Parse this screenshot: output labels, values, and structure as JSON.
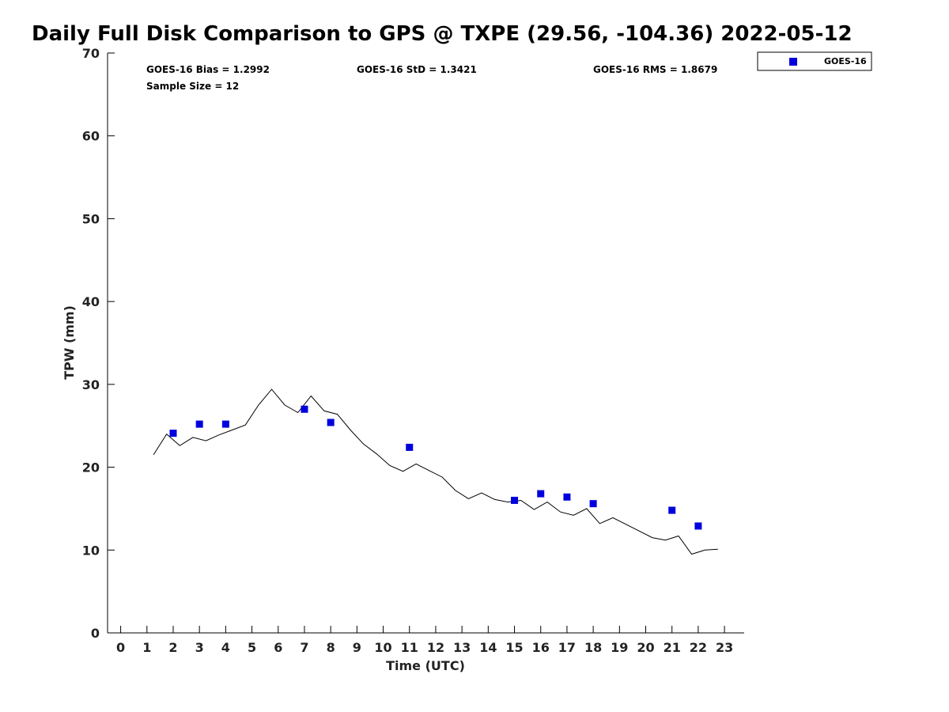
{
  "chart_data": {
    "type": "line",
    "title": "Daily Full Disk Comparison to GPS @ TXPE (29.56, -104.36) 2022-05-12",
    "xlabel": "Time (UTC)",
    "ylabel": "TPW (mm)",
    "xlim": [
      -0.5,
      23.75
    ],
    "ylim": [
      0,
      70
    ],
    "x_ticks": [
      0,
      1,
      2,
      3,
      4,
      5,
      6,
      7,
      8,
      9,
      10,
      11,
      12,
      13,
      14,
      15,
      16,
      17,
      18,
      19,
      20,
      21,
      22,
      23
    ],
    "y_ticks": [
      0,
      10,
      20,
      30,
      40,
      50,
      60,
      70
    ],
    "grid": false,
    "legend_position": "top-right, outside plot",
    "stats": {
      "bias": "GOES-16 Bias = 1.2992",
      "std": "GOES-16 StD = 1.3421",
      "rms": "GOES-16 RMS = 1.8679",
      "sample": "Sample Size = 12"
    },
    "series": [
      {
        "kind": "line",
        "color": "#000000",
        "x": [
          1.25,
          1.75,
          2.25,
          2.75,
          3.25,
          3.75,
          4.25,
          4.75,
          5.25,
          5.75,
          6.25,
          6.75,
          7.25,
          7.75,
          8.25,
          8.75,
          9.25,
          9.75,
          10.25,
          10.75,
          11.25,
          11.75,
          12.25,
          12.75,
          13.25,
          13.75,
          14.25,
          14.75,
          15.25,
          15.75,
          16.25,
          16.75,
          17.25,
          17.75,
          18.25,
          18.75,
          19.25,
          19.75,
          20.25,
          20.75,
          21.25,
          21.75,
          22.25,
          22.75
        ],
        "values": [
          21.5,
          24.0,
          22.6,
          23.6,
          23.2,
          23.9,
          24.5,
          25.1,
          27.5,
          29.4,
          27.5,
          26.6,
          28.6,
          26.8,
          26.4,
          24.5,
          22.8,
          21.6,
          20.2,
          19.5,
          20.4,
          19.6,
          18.8,
          17.2,
          16.2,
          16.9,
          16.1,
          15.8,
          16.0,
          14.9,
          15.8,
          14.6,
          14.2,
          15.0,
          13.2,
          13.9,
          13.1,
          12.3,
          11.5,
          11.2,
          11.7,
          9.5,
          10.0,
          10.1
        ]
      },
      {
        "kind": "scatter",
        "name": "GOES-16",
        "color": "#0000dd",
        "x": [
          2,
          3,
          4,
          7,
          8,
          11,
          15,
          16,
          17,
          18,
          21,
          22
        ],
        "values": [
          24.1,
          25.2,
          25.2,
          27.0,
          25.4,
          22.4,
          16.0,
          16.8,
          16.4,
          15.6,
          14.8,
          12.9
        ]
      }
    ]
  }
}
